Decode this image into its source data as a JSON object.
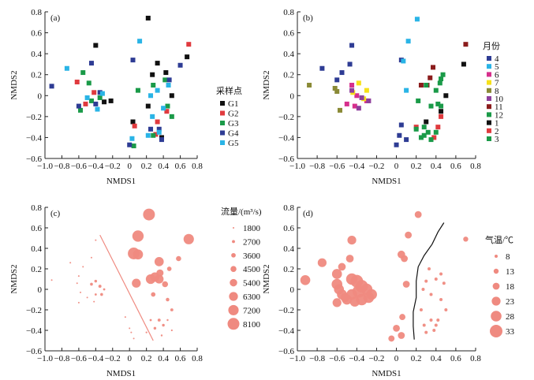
{
  "chart_data": [
    {
      "panel": "(a)",
      "type": "scatter",
      "xlabel": "NMDS1",
      "ylabel": "NMDS2",
      "xlim": [
        -1.0,
        0.8
      ],
      "ylim": [
        -0.6,
        0.8
      ],
      "xticks": [
        "−1.0",
        "−0.8",
        "−0.6",
        "−0.4",
        "−0.2",
        "0",
        "0.2",
        "0.4",
        "0.6",
        "0.8"
      ],
      "yticks": [
        "−0.6",
        "−0.4",
        "−0.2",
        "0",
        "0.2",
        "0.4",
        "0.6",
        "0.8"
      ],
      "marker": "square",
      "legend_title": "采样点",
      "legend_position": "right",
      "series": [
        {
          "name": "G1",
          "color": "#111111",
          "points": [
            [
              -0.4,
              0.48
            ],
            [
              0.22,
              0.74
            ],
            [
              -0.22,
              -0.05
            ],
            [
              -0.3,
              -0.06
            ],
            [
              0.04,
              -0.25
            ],
            [
              0.22,
              -0.1
            ],
            [
              0.5,
              0.0
            ],
            [
              0.43,
              0.22
            ],
            [
              0.27,
              0.2
            ],
            [
              0.68,
              0.37
            ],
            [
              0.33,
              0.31
            ],
            [
              0.38,
              -0.4
            ]
          ]
        },
        {
          "name": "G2",
          "color": "#e03a3e",
          "points": [
            [
              -0.62,
              0.13
            ],
            [
              -0.42,
              0.03
            ],
            [
              0.7,
              0.49
            ],
            [
              0.06,
              -0.29
            ],
            [
              0.33,
              -0.25
            ],
            [
              0.44,
              -0.15
            ],
            [
              -0.52,
              -0.08
            ],
            [
              0.31,
              -0.37
            ]
          ]
        },
        {
          "name": "G3",
          "color": "#1a9a48",
          "points": [
            [
              -0.55,
              0.22
            ],
            [
              -0.48,
              0.12
            ],
            [
              -0.58,
              -0.14
            ],
            [
              0.1,
              0.05
            ],
            [
              0.28,
              0.1
            ],
            [
              0.42,
              0.15
            ],
            [
              0.05,
              -0.48
            ],
            [
              0.28,
              -0.38
            ],
            [
              0.45,
              -0.1
            ],
            [
              0.5,
              -0.2
            ],
            [
              -0.35,
              -0.02
            ],
            [
              -0.45,
              -0.05
            ]
          ]
        },
        {
          "name": "G4",
          "color": "#2e3c94",
          "points": [
            [
              -0.92,
              0.09
            ],
            [
              -0.45,
              0.31
            ],
            [
              -0.6,
              -0.1
            ],
            [
              -0.4,
              -0.08
            ],
            [
              -0.35,
              0.03
            ],
            [
              0.04,
              0.34
            ],
            [
              0.47,
              0.15
            ],
            [
              0.6,
              0.29
            ],
            [
              0.0,
              -0.47
            ],
            [
              0.25,
              -0.32
            ],
            [
              0.35,
              -0.32
            ],
            [
              0.38,
              -0.42
            ]
          ]
        },
        {
          "name": "G5",
          "color": "#2ab4e6",
          "points": [
            [
              -0.74,
              0.26
            ],
            [
              0.12,
              0.52
            ],
            [
              -0.5,
              -0.02
            ],
            [
              -0.38,
              -0.13
            ],
            [
              -0.32,
              0.02
            ],
            [
              0.03,
              -0.41
            ],
            [
              0.25,
              0.0
            ],
            [
              0.33,
              0.05
            ],
            [
              0.46,
              0.1
            ],
            [
              0.27,
              -0.2
            ],
            [
              0.4,
              -0.12
            ],
            [
              0.35,
              -0.35
            ],
            [
              0.22,
              -0.38
            ]
          ]
        }
      ]
    },
    {
      "panel": "(b)",
      "type": "scatter",
      "xlabel": "NMDS1",
      "ylabel": "NMDS2",
      "xlim": [
        -1.0,
        0.8
      ],
      "ylim": [
        -0.6,
        0.8
      ],
      "xticks": [
        "−1.0",
        "−0.8",
        "−0.6",
        "−0.4",
        "−0.2",
        "0",
        "0.2",
        "0.4",
        "0.6",
        "0.8"
      ],
      "yticks": [
        "−0.6",
        "−0.4",
        "−0.2",
        "0",
        "0.2",
        "0.4",
        "0.6",
        "0.8"
      ],
      "marker": "square",
      "legend_title": "月份",
      "legend_position": "right",
      "series": [
        {
          "name": "4",
          "color": "#2e3c94",
          "points": [
            [
              -0.45,
              0.48
            ],
            [
              -0.75,
              0.26
            ],
            [
              -0.6,
              0.15
            ],
            [
              -0.55,
              0.22
            ],
            [
              -0.47,
              0.3
            ],
            [
              0.0,
              -0.47
            ],
            [
              0.05,
              -0.28
            ],
            [
              0.1,
              -0.42
            ],
            [
              0.03,
              -0.38
            ],
            [
              0.05,
              0.34
            ]
          ]
        },
        {
          "name": "5",
          "color": "#2ab4e6",
          "points": [
            [
              0.21,
              0.73
            ],
            [
              0.12,
              0.52
            ],
            [
              0.07,
              0.33
            ],
            [
              0.1,
              0.05
            ]
          ]
        },
        {
          "name": "6",
          "color": "#d62f8c",
          "points": [
            [
              -0.45,
              0.1
            ],
            [
              -0.4,
              0.0
            ],
            [
              -0.3,
              -0.05
            ],
            [
              -0.42,
              -0.1
            ],
            [
              -0.5,
              -0.08
            ]
          ]
        },
        {
          "name": "7",
          "color": "#f6e11a",
          "points": [
            [
              -0.38,
              0.12
            ],
            [
              -0.3,
              0.05
            ],
            [
              -0.33,
              -0.03
            ],
            [
              -0.44,
              0.03
            ]
          ]
        },
        {
          "name": "8",
          "color": "#8a8a36",
          "points": [
            [
              -0.88,
              0.1
            ],
            [
              -0.6,
              0.04
            ],
            [
              -0.57,
              -0.14
            ],
            [
              -0.62,
              0.07
            ]
          ]
        },
        {
          "name": "10",
          "color": "#8e3f9c",
          "points": [
            [
              -0.45,
              0.05
            ],
            [
              -0.38,
              -0.12
            ],
            [
              -0.28,
              -0.05
            ],
            [
              -0.35,
              -0.02
            ]
          ]
        },
        {
          "name": "11",
          "color": "#8b1c1c",
          "points": [
            [
              0.7,
              0.49
            ],
            [
              0.37,
              0.27
            ],
            [
              0.34,
              0.17
            ],
            [
              0.31,
              0.1
            ],
            [
              0.25,
              0.1
            ]
          ]
        },
        {
          "name": "12",
          "color": "#1a9a48",
          "points": [
            [
              0.3,
              0.1
            ],
            [
              0.45,
              0.16
            ],
            [
              0.22,
              -0.05
            ],
            [
              0.35,
              -0.1
            ],
            [
              0.28,
              -0.3
            ],
            [
              0.32,
              -0.35
            ],
            [
              0.45,
              -0.1
            ],
            [
              0.25,
              -0.4
            ],
            [
              0.4,
              -0.35
            ]
          ]
        },
        {
          "name": "1",
          "color": "#111111",
          "points": [
            [
              0.68,
              0.3
            ],
            [
              0.5,
              0.0
            ],
            [
              0.45,
              -0.15
            ],
            [
              0.3,
              -0.25
            ]
          ]
        },
        {
          "name": "2",
          "color": "#e03a3e",
          "points": [
            [
              0.38,
              -0.4
            ],
            [
              0.42,
              -0.3
            ],
            [
              0.45,
              -0.2
            ],
            [
              0.2,
              -0.3
            ]
          ]
        },
        {
          "name": "3",
          "color": "#1a9a48",
          "points": [
            [
              0.47,
              0.2
            ],
            [
              0.44,
              0.12
            ],
            [
              0.42,
              -0.08
            ],
            [
              0.28,
              -0.38
            ],
            [
              0.2,
              -0.32
            ],
            [
              0.35,
              -0.42
            ],
            [
              0.4,
              0.05
            ]
          ]
        }
      ]
    },
    {
      "panel": "(c)",
      "type": "scatter",
      "xlabel": "NMDS1",
      "ylabel": "NMDS2",
      "xlim": [
        -1.0,
        0.8
      ],
      "ylim": [
        -0.6,
        0.8
      ],
      "xticks": [
        "−1.0",
        "−0.8",
        "−0.6",
        "−0.4",
        "−0.2",
        "0",
        "0.2",
        "0.4",
        "0.6",
        "0.8"
      ],
      "yticks": [
        "−0.6",
        "−0.4",
        "−0.2",
        "0",
        "0.2",
        "0.4",
        "0.6",
        "0.8"
      ],
      "marker": "circle",
      "size_variable": "流量/(m³/s)",
      "legend_title": "流量/(m³/s)",
      "legend_position": "right",
      "legend_values": [
        "1800",
        "2700",
        "3600",
        "4500",
        "5400",
        "6300",
        "7200",
        "8100"
      ],
      "color": "#ef8a80",
      "separator_line": [
        [
          -0.35,
          0.53
        ],
        [
          0.28,
          -0.5
        ]
      ],
      "points": [
        [
          0.23,
          0.73,
          8100
        ],
        [
          0.7,
          0.49,
          7200
        ],
        [
          0.1,
          0.52,
          7800
        ],
        [
          0.05,
          0.35,
          8100
        ],
        [
          0.1,
          0.34,
          7000
        ],
        [
          0.35,
          0.27,
          6500
        ],
        [
          0.58,
          0.3,
          4000
        ],
        [
          0.25,
          0.1,
          6800
        ],
        [
          0.3,
          0.12,
          6600
        ],
        [
          0.35,
          0.1,
          6300
        ],
        [
          0.08,
          0.06,
          6300
        ],
        [
          0.36,
          0.16,
          5200
        ],
        [
          0.42,
          0.05,
          4500
        ],
        [
          0.28,
          -0.05,
          3600
        ],
        [
          0.47,
          0.2,
          3600
        ],
        [
          0.45,
          -0.1,
          3000
        ],
        [
          0.5,
          -0.2,
          2700
        ],
        [
          0.35,
          -0.3,
          2700
        ],
        [
          0.4,
          -0.35,
          2500
        ],
        [
          0.3,
          -0.38,
          2500
        ],
        [
          0.25,
          -0.3,
          2200
        ],
        [
          0.45,
          -0.3,
          2000
        ],
        [
          0.38,
          -0.45,
          2000
        ],
        [
          0.5,
          -0.4,
          1900
        ],
        [
          0.2,
          -0.42,
          1900
        ],
        [
          -0.4,
          0.48,
          1800
        ],
        [
          -0.7,
          0.26,
          1800
        ],
        [
          -0.92,
          0.09,
          1800
        ],
        [
          -0.6,
          0.13,
          1800
        ],
        [
          -0.55,
          0.22,
          1800
        ],
        [
          -0.45,
          0.31,
          1800
        ],
        [
          -0.45,
          0.05,
          2600
        ],
        [
          -0.4,
          0.08,
          2500
        ],
        [
          -0.35,
          0.03,
          2700
        ],
        [
          -0.33,
          -0.05,
          2600
        ],
        [
          -0.4,
          -0.05,
          2200
        ],
        [
          -0.3,
          0.0,
          2200
        ],
        [
          -0.5,
          -0.08,
          1800
        ],
        [
          -0.6,
          -0.13,
          1800
        ],
        [
          -0.42,
          -0.12,
          1800
        ],
        [
          -0.62,
          0.06,
          1800
        ],
        [
          -0.58,
          -0.03,
          1800
        ],
        [
          0.02,
          -0.42,
          1800
        ],
        [
          0.05,
          -0.48,
          1800
        ],
        [
          -0.05,
          -0.27,
          1800
        ],
        [
          0.0,
          -0.38,
          1800
        ]
      ]
    },
    {
      "panel": "(d)",
      "type": "scatter",
      "xlabel": "NMDS1",
      "ylabel": "NMDS2",
      "xlim": [
        -1.0,
        0.8
      ],
      "ylim": [
        -0.6,
        0.8
      ],
      "xticks": [
        "−1.0",
        "−0.8",
        "−0.6",
        "−0.4",
        "−0.2",
        "0",
        "0.2",
        "0.4",
        "0.6",
        "0.8"
      ],
      "yticks": [
        "−0.6",
        "−0.4",
        "−0.2",
        "0",
        "0.2",
        "0.4",
        "0.6",
        "0.8"
      ],
      "marker": "circle",
      "size_variable": "气温/℃",
      "legend_title": "气温/℃",
      "legend_position": "right",
      "legend_values": [
        "8",
        "13",
        "18",
        "23",
        "28",
        "33"
      ],
      "color": "#ef8a80",
      "separator_curve": [
        [
          0.48,
          0.65
        ],
        [
          0.42,
          0.56
        ],
        [
          0.36,
          0.44
        ],
        [
          0.28,
          0.33
        ],
        [
          0.22,
          0.22
        ],
        [
          0.2,
          0.08
        ],
        [
          0.2,
          -0.08
        ],
        [
          0.17,
          -0.22
        ],
        [
          0.17,
          -0.36
        ],
        [
          0.18,
          -0.49
        ]
      ],
      "points": [
        [
          0.22,
          0.73,
          18
        ],
        [
          0.12,
          0.53,
          18
        ],
        [
          -0.45,
          0.48,
          23
        ],
        [
          -0.75,
          0.26,
          23
        ],
        [
          -0.6,
          0.15,
          26
        ],
        [
          -0.55,
          0.22,
          20
        ],
        [
          -0.47,
          0.3,
          20
        ],
        [
          -0.92,
          0.09,
          26
        ],
        [
          -0.6,
          0.05,
          28
        ],
        [
          -0.58,
          0.0,
          26
        ],
        [
          -0.55,
          -0.05,
          26
        ],
        [
          -0.45,
          0.1,
          30
        ],
        [
          -0.4,
          0.08,
          33
        ],
        [
          -0.35,
          0.03,
          33
        ],
        [
          -0.3,
          0.0,
          30
        ],
        [
          -0.25,
          -0.05,
          28
        ],
        [
          -0.38,
          -0.02,
          33
        ],
        [
          -0.45,
          -0.05,
          28
        ],
        [
          -0.5,
          -0.1,
          26
        ],
        [
          -0.42,
          -0.12,
          26
        ],
        [
          -0.35,
          -0.1,
          30
        ],
        [
          -0.28,
          -0.08,
          28
        ],
        [
          -0.6,
          -0.13,
          23
        ],
        [
          -0.52,
          -0.08,
          23
        ],
        [
          0.05,
          0.34,
          20
        ],
        [
          0.08,
          0.3,
          18
        ],
        [
          0.1,
          0.05,
          18
        ],
        [
          0.0,
          -0.38,
          18
        ],
        [
          0.05,
          -0.45,
          18
        ],
        [
          -0.05,
          -0.48,
          16
        ],
        [
          0.06,
          -0.27,
          16
        ],
        [
          0.7,
          0.49,
          13
        ],
        [
          0.45,
          0.15,
          8
        ],
        [
          0.4,
          0.1,
          8
        ],
        [
          0.3,
          0.08,
          8
        ],
        [
          0.33,
          0.2,
          8
        ],
        [
          0.45,
          -0.1,
          8
        ],
        [
          0.5,
          -0.2,
          8
        ],
        [
          0.35,
          -0.3,
          8
        ],
        [
          0.38,
          -0.4,
          8
        ],
        [
          0.28,
          -0.35,
          8
        ],
        [
          0.3,
          -0.42,
          8
        ],
        [
          0.42,
          -0.3,
          8
        ],
        [
          0.25,
          -0.2,
          8
        ],
        [
          0.48,
          0.06,
          8
        ],
        [
          0.35,
          -0.05,
          8
        ],
        [
          0.4,
          -0.35,
          8
        ],
        [
          0.27,
          0.0,
          8
        ]
      ]
    }
  ]
}
